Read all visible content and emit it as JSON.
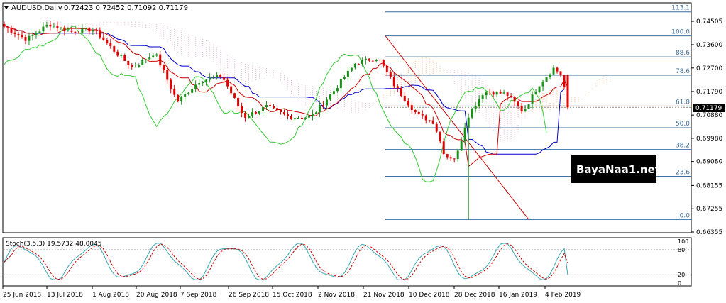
{
  "header": {
    "symbol_label": "AUDUSD,Daily",
    "ohlc_label": "0.72423 0.72452 0.71092 0.71179"
  },
  "watermark": {
    "text": "BayaNaa1.net"
  },
  "stoch_label": "Stoch(3,5,3) 19.5732 48.0045",
  "colors": {
    "candle_up": "#1a8f1a",
    "candle_down": "#e00000",
    "kijun": "#0000cc",
    "tenkan": "#cc0000",
    "chikou": "#33cc33",
    "cloud": "#f0a060",
    "fib": "#3f6f9f",
    "stoch_main": "#3aa6b0",
    "stoch_signal": "#cc0000",
    "price_badge": "#000000"
  },
  "chart_data": [
    {
      "type": "candlestick",
      "title": "AUDUSD,Daily",
      "ohlc_last": {
        "open": 0.72423,
        "high": 0.72452,
        "low": 0.71092,
        "close": 0.71179
      },
      "price_axis_ticks": [
        "0.74505",
        "0.73600",
        "0.72700",
        "0.71790",
        "0.70880",
        "0.69980",
        "0.69080",
        "0.68155",
        "0.67255",
        "0.66355"
      ],
      "current_price": "0.71179",
      "x_tick_labels": [
        "25 Jun 2018",
        "13 Jul 2018",
        "1 Aug 2018",
        "20 Aug 2018",
        "7 Sep 2018",
        "26 Sep 2018",
        "15 Oct 2018",
        "2 Nov 2018",
        "21 Nov 2018",
        "10 Dec 2018",
        "28 Dec 2018",
        "16 Jan 2019",
        "4 Feb 2019"
      ],
      "ylim": [
        0.66355,
        0.75
      ],
      "fibonacci": [
        {
          "level": "113.1",
          "price": 0.7487
        },
        {
          "level": "100.0",
          "price": 0.7394
        },
        {
          "level": "88.6",
          "price": 0.7313
        },
        {
          "level": "78.6",
          "price": 0.7242
        },
        {
          "level": "61.8",
          "price": 0.7123
        },
        {
          "level": "50.0",
          "price": 0.7039
        },
        {
          "level": "38.2",
          "price": 0.6955
        },
        {
          "level": "23.6",
          "price": 0.6851
        },
        {
          "level": "0.0",
          "price": 0.6684
        }
      ],
      "indicators": [
        "Ichimoku Kinko Hyo",
        "Fibonacci retracement"
      ]
    },
    {
      "type": "line",
      "title": "Stoch(3,5,3) 19.5732 48.0045",
      "main_value": 19.5732,
      "signal_value": 48.0045,
      "ylim": [
        0,
        100
      ],
      "levels": [
        20,
        80
      ],
      "y_tick_labels": [
        "100",
        "80",
        "20",
        "0"
      ]
    }
  ]
}
